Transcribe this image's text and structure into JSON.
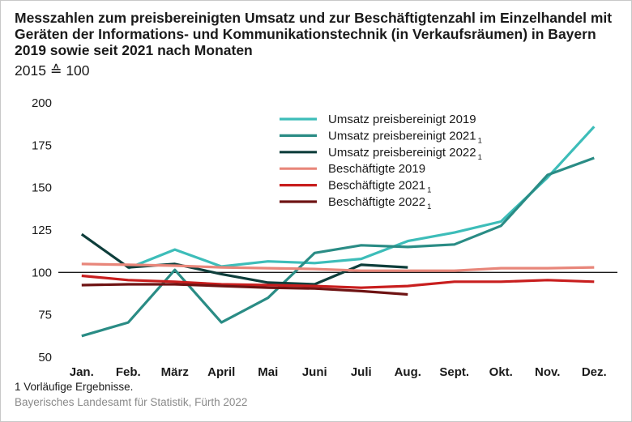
{
  "chart_data": {
    "type": "line",
    "title": "Messzahlen zum preisbereinigten Umsatz und zur Beschäftigtenzahl im Einzelhandel mit Geräten der Informations- und Kommunikationstechnik (in Verkaufsräumen) in Bayern 2019 sowie seit 2021 nach Monaten",
    "subtitle": "2015 ≙ 100",
    "categories": [
      "Jan.",
      "Feb.",
      "März",
      "April",
      "Mai",
      "Juni",
      "Juli",
      "Aug.",
      "Sept.",
      "Okt.",
      "Nov.",
      "Dez."
    ],
    "yticks": [
      50,
      75,
      100,
      125,
      150,
      175,
      200
    ],
    "ylim": [
      50,
      200
    ],
    "reference_line": 100,
    "legend_position": "top-right",
    "series": [
      {
        "name": "Umsatz preisbereinigt 2019",
        "sup": "",
        "color": "#3dbdb9",
        "values": [
          null,
          102.5,
          113.5,
          103.5,
          106.5,
          105.5,
          108,
          118.5,
          123.5,
          130,
          156,
          186
        ]
      },
      {
        "name": "Umsatz preisbereinigt 2021",
        "sup": "1",
        "color": "#2a8c85",
        "values": [
          62.5,
          70.5,
          101.5,
          70.5,
          85,
          111.5,
          116,
          115,
          116.5,
          127.5,
          157.5,
          167.5
        ]
      },
      {
        "name": "Umsatz preisbereinigt 2022",
        "sup": "1",
        "color": "#0e3e3b",
        "values": [
          122.5,
          103,
          105,
          99,
          94,
          93,
          104.5,
          103,
          null,
          null,
          null,
          null
        ]
      },
      {
        "name": "Beschäftigte 2019",
        "sup": "",
        "color": "#e8867a",
        "values": [
          105,
          104.5,
          104,
          103,
          102.5,
          102,
          101,
          101,
          101,
          102.5,
          102.5,
          103
        ]
      },
      {
        "name": "Beschäftigte 2021",
        "sup": "1",
        "color": "#c81e1e",
        "values": [
          98,
          95.5,
          94.5,
          93,
          92.5,
          92,
          91,
          92,
          94.5,
          94.5,
          95.5,
          94.5
        ]
      },
      {
        "name": "Beschäftigte 2022",
        "sup": "1",
        "color": "#6e1313",
        "values": [
          92.5,
          93,
          93,
          92,
          91,
          90.5,
          89,
          87,
          null,
          null,
          null,
          null
        ]
      }
    ]
  },
  "footnote": "1  Vorläufige Ergebnisse.",
  "source": "Bayerisches Landesamt für Statistik, Fürth 2022"
}
